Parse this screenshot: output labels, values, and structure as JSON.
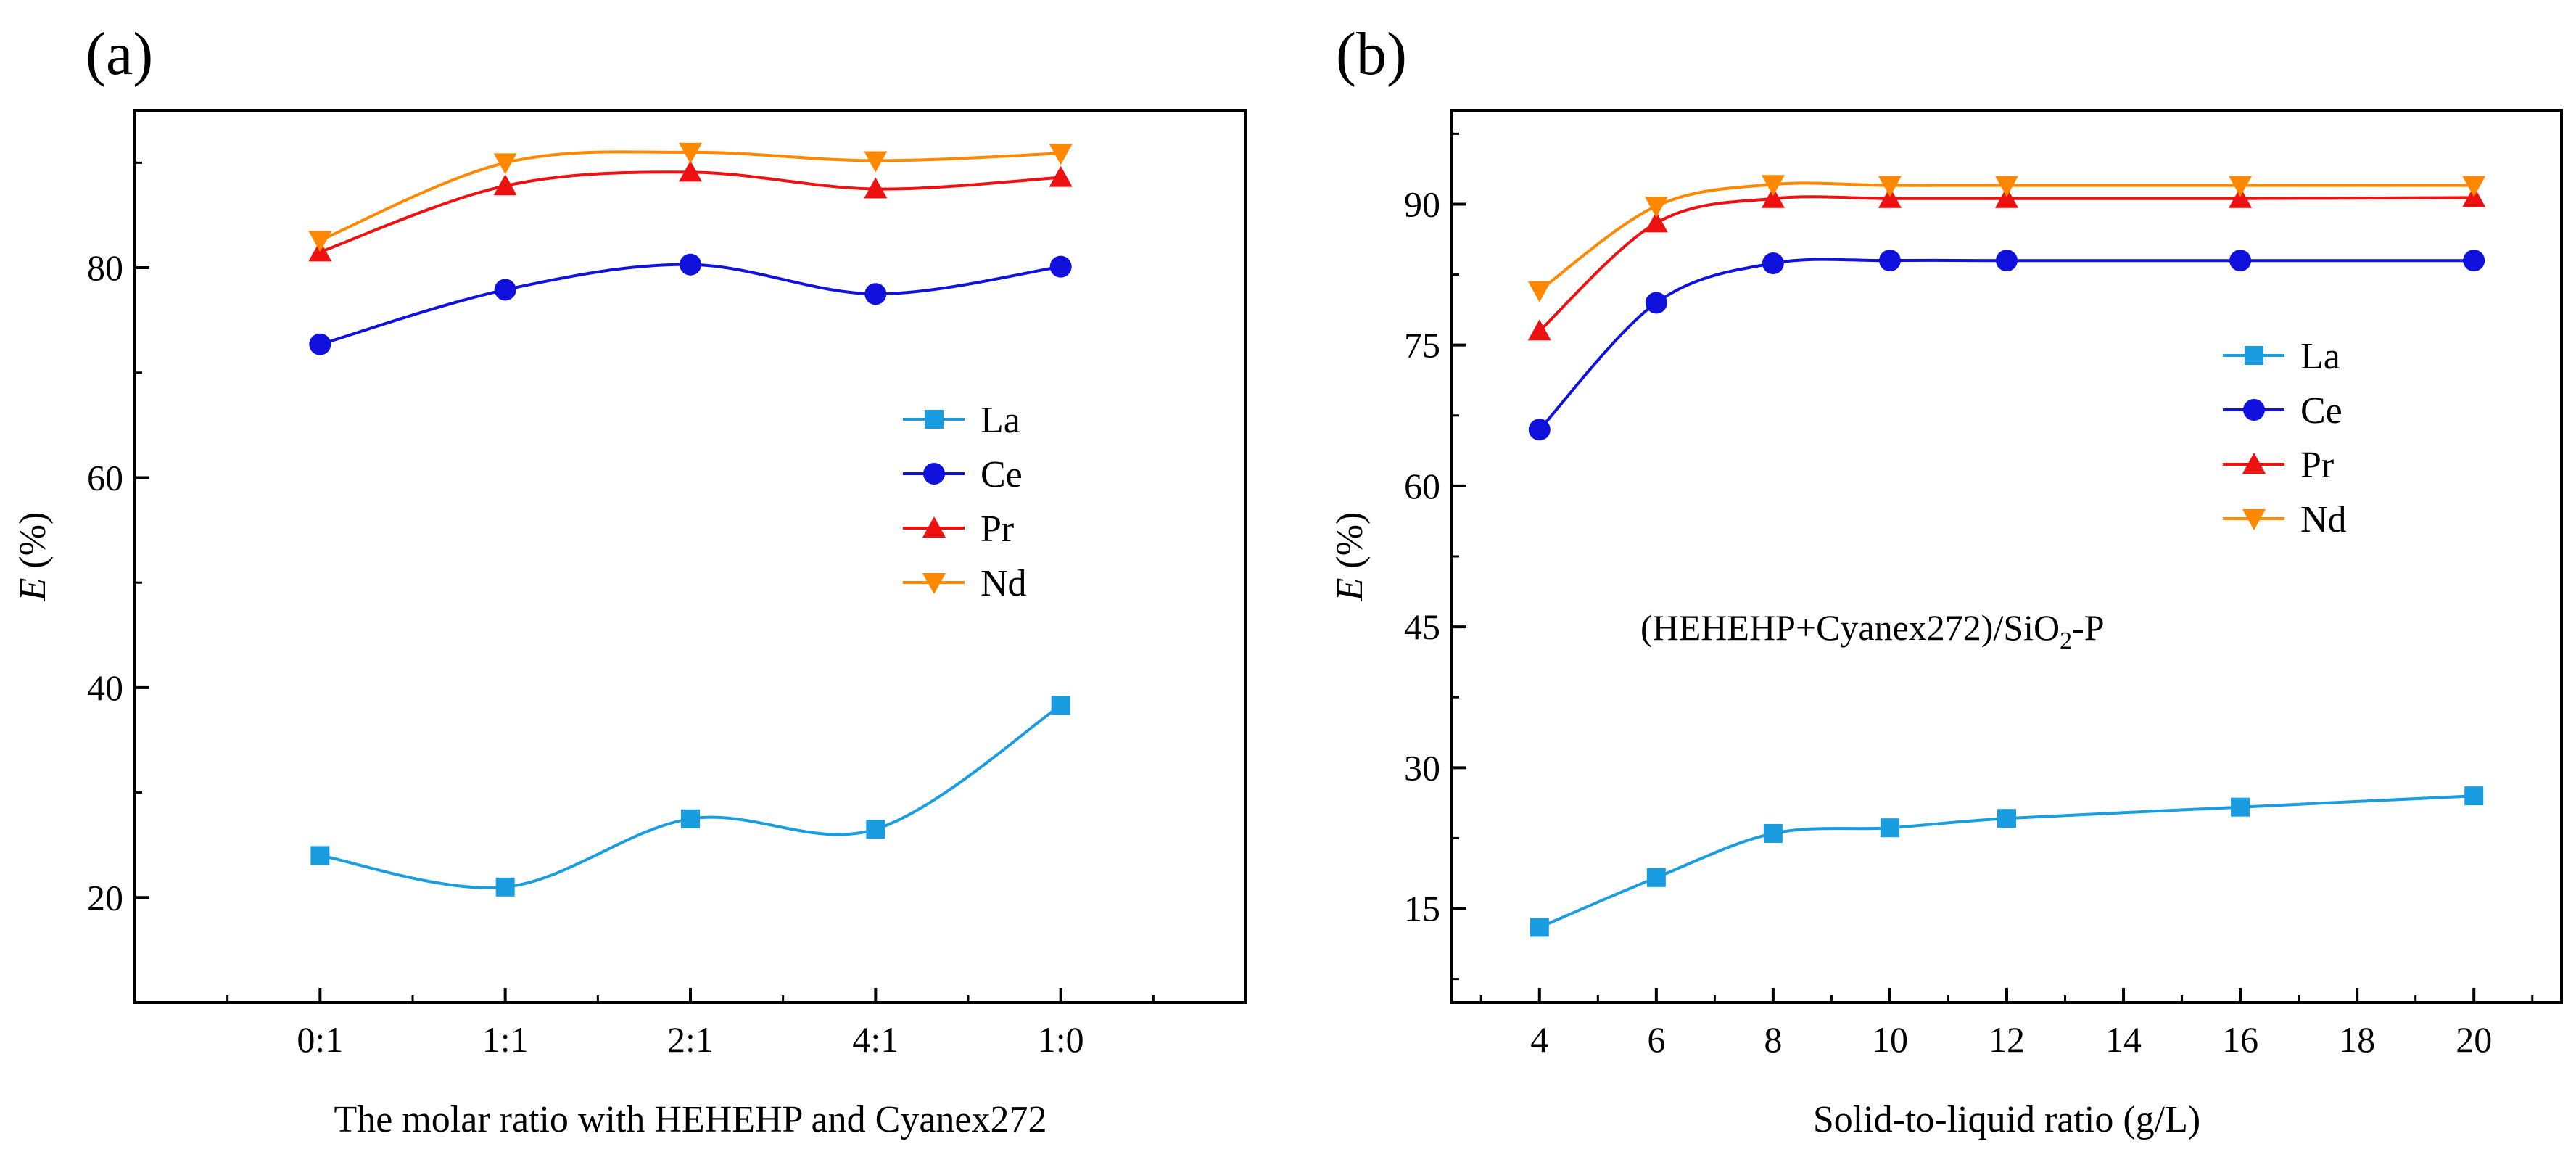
{
  "chart_data": [
    {
      "type": "line",
      "panel_label": "(a)",
      "xlabel": "The molar ratio with HEHEHP and Cyanex272",
      "ylabel": "E (%)",
      "ylabel_italic": "E",
      "ylabel_rest": " (%)",
      "categories": [
        "0:1",
        "1:1",
        "2:1",
        "4:1",
        "1:0"
      ],
      "ylim": [
        10,
        95
      ],
      "yticks": [
        20,
        40,
        60,
        80
      ],
      "ytick_labels": [
        "20",
        "40",
        "60",
        "80"
      ],
      "legend_position": "center-right",
      "smooth": true,
      "series": [
        {
          "name": "La",
          "marker": "square",
          "color": "#1a9de0",
          "values": [
            24.0,
            21.0,
            27.5,
            26.5,
            38.3
          ]
        },
        {
          "name": "Ce",
          "marker": "circle",
          "color": "#1111dd",
          "values": [
            72.7,
            77.9,
            80.3,
            77.5,
            80.1
          ]
        },
        {
          "name": "Pr",
          "marker": "triangle-up",
          "color": "#ee1111",
          "values": [
            81.5,
            87.8,
            89.1,
            87.5,
            88.6
          ]
        },
        {
          "name": "Nd",
          "marker": "triangle-down",
          "color": "#ff8800",
          "values": [
            82.6,
            90.0,
            91.0,
            90.2,
            90.9
          ]
        }
      ]
    },
    {
      "type": "line",
      "panel_label": "(b)",
      "xlabel": "Solid-to-liquid ratio (g/L)",
      "ylabel": "E (%)",
      "ylabel_italic": "E",
      "ylabel_rest": " (%)",
      "xlim": [
        2.5,
        21.5
      ],
      "xticks": [
        4,
        6,
        8,
        10,
        12,
        14,
        16,
        18,
        20
      ],
      "xtick_labels": [
        "4",
        "6",
        "8",
        "10",
        "12",
        "14",
        "16",
        "18",
        "20"
      ],
      "ylim": [
        5,
        100
      ],
      "yticks": [
        15,
        30,
        45,
        60,
        75,
        90
      ],
      "ytick_labels": [
        "15",
        "30",
        "45",
        "60",
        "75",
        "90"
      ],
      "legend_position": "upper-right",
      "annotation": {
        "pre": "(HEHEHP+Cyanex272)/SiO",
        "sub": "2",
        "post": "-P"
      },
      "smooth": true,
      "series": [
        {
          "name": "La",
          "marker": "square",
          "color": "#1a9de0",
          "x": [
            4,
            6,
            8,
            10,
            12,
            16,
            20
          ],
          "values": [
            13.0,
            18.3,
            23.0,
            23.6,
            24.6,
            25.8,
            27.0
          ]
        },
        {
          "name": "Ce",
          "marker": "circle",
          "color": "#1111dd",
          "x": [
            4,
            6,
            8,
            10,
            12,
            16,
            20
          ],
          "values": [
            66.0,
            79.5,
            83.7,
            84.0,
            84.0,
            84.0,
            84.0
          ]
        },
        {
          "name": "Pr",
          "marker": "triangle-up",
          "color": "#ee1111",
          "x": [
            4,
            6,
            8,
            10,
            12,
            16,
            20
          ],
          "values": [
            76.5,
            88.0,
            90.6,
            90.6,
            90.6,
            90.6,
            90.7
          ]
        },
        {
          "name": "Nd",
          "marker": "triangle-down",
          "color": "#ff8800",
          "x": [
            4,
            6,
            8,
            10,
            12,
            16,
            20
          ],
          "values": [
            80.8,
            89.8,
            92.1,
            92.0,
            92.0,
            92.0,
            92.0
          ]
        }
      ]
    }
  ]
}
